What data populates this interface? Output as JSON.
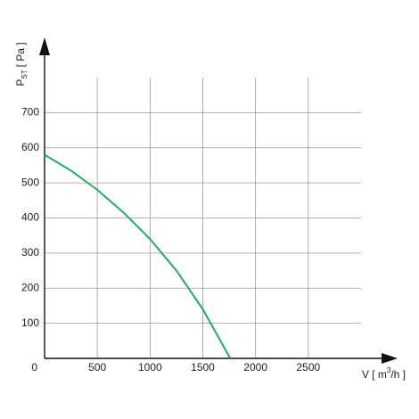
{
  "chart_data": {
    "type": "line",
    "y_label": {
      "main": "P",
      "sub": "ST",
      "unit": "[ Pa ]"
    },
    "x_label": {
      "main": "V [ m",
      "sup": "3",
      "unit": "/h ]"
    },
    "x": [
      0,
      250,
      500,
      750,
      1000,
      1250,
      1500,
      1760
    ],
    "series": [
      {
        "color": "#2aa86a",
        "values": [
          580,
          535,
          480,
          415,
          340,
          250,
          140,
          0
        ]
      }
    ],
    "xlim": [
      0,
      3000
    ],
    "ylim": [
      0,
      800
    ],
    "xticks": [
      0,
      500,
      1000,
      1500,
      2000,
      2500
    ],
    "yticks": [
      100,
      200,
      300,
      400,
      500,
      600,
      700
    ],
    "grid": true
  }
}
